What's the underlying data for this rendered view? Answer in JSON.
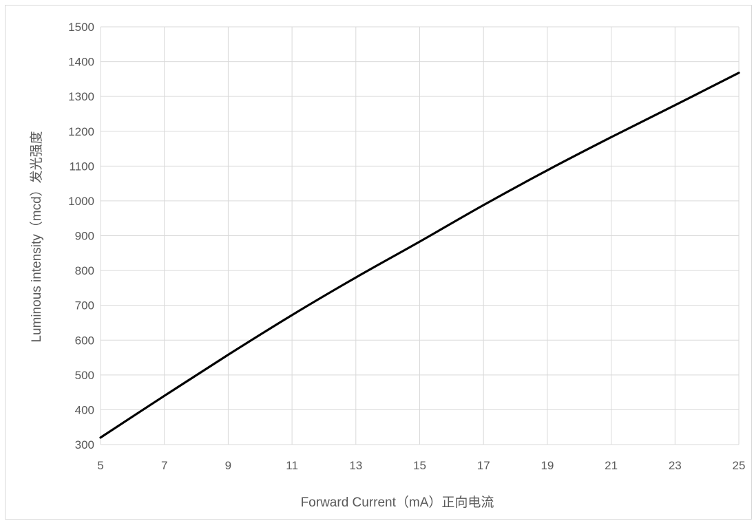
{
  "chart_data": {
    "type": "line",
    "title": "",
    "xlabel": "Forward Current（mA）正向电流",
    "ylabel": "Luminous intensity（mcd）发光强度",
    "xlim": [
      5,
      25
    ],
    "ylim": [
      300,
      1500
    ],
    "x_ticks": [
      "5",
      "7",
      "9",
      "11",
      "13",
      "15",
      "17",
      "19",
      "21",
      "23",
      "25"
    ],
    "y_ticks": [
      "300",
      "400",
      "500",
      "600",
      "700",
      "800",
      "900",
      "1000",
      "1100",
      "1200",
      "1300",
      "1400",
      "1500"
    ],
    "grid": true,
    "legend": "none",
    "series": [
      {
        "color": "#000000",
        "x": [
          5,
          7,
          9,
          11,
          13,
          15,
          17,
          19,
          21,
          23,
          25
        ],
        "y": [
          320,
          440,
          558,
          672,
          780,
          883,
          988,
          1088,
          1183,
          1275,
          1368
        ]
      }
    ]
  }
}
